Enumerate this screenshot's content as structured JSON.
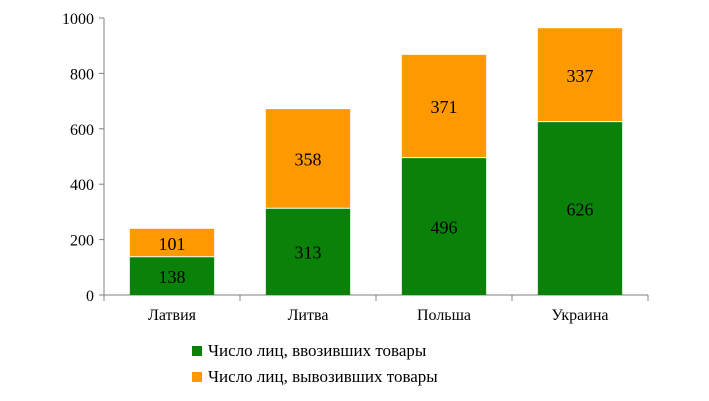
{
  "chart_data": {
    "type": "bar",
    "stacked": true,
    "categories": [
      "Латвия",
      "Литва",
      "Польша",
      "Украина"
    ],
    "series": [
      {
        "name": "Число лиц, ввозивших товары",
        "values": [
          138,
          313,
          496,
          626
        ],
        "color": "#0a820a"
      },
      {
        "name": "Число лиц, вывозивших товары",
        "values": [
          101,
          358,
          371,
          337
        ],
        "color": "#ff9900"
      }
    ],
    "ylim": [
      0,
      1000
    ],
    "yticks": [
      "0",
      "200",
      "400",
      "600",
      "800",
      "1000"
    ],
    "legend_position": "bottom",
    "grid": false
  }
}
